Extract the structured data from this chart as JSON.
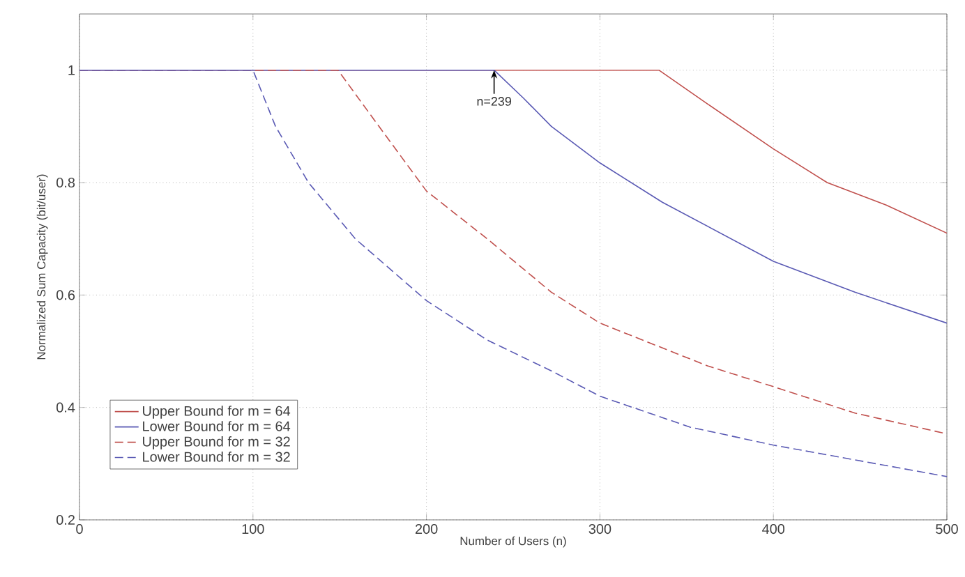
{
  "chart_data": {
    "type": "line",
    "xlabel": "Number of Users (n)",
    "ylabel": "Normalized Sum Capacity (bit/user)",
    "xlim": [
      0,
      500
    ],
    "ylim": [
      0.2,
      1.1
    ],
    "xticks": [
      0,
      100,
      200,
      300,
      400,
      500
    ],
    "yticks": [
      0.2,
      0.4,
      0.6,
      0.8,
      1
    ],
    "grid": true,
    "legend": "bottom left",
    "annotations": [
      {
        "text": "n=239",
        "x": 239,
        "y": 1
      }
    ],
    "series": [
      {
        "name": "Upper Bound for m = 64",
        "color": "#c0504d",
        "line_style": "solid",
        "x": [
          0,
          334,
          362,
          400,
          431,
          465,
          500
        ],
        "values": [
          1,
          1,
          0.94,
          0.86,
          0.8,
          0.76,
          0.71
        ]
      },
      {
        "name": "Lower Bound for m = 64",
        "color": "#5a5ab4",
        "line_style": "solid",
        "x": [
          0,
          239,
          256,
          272,
          300,
          336,
          400,
          447,
          500
        ],
        "values": [
          1,
          1,
          0.95,
          0.9,
          0.835,
          0.765,
          0.66,
          0.605,
          0.55
        ]
      },
      {
        "name": "Upper Bound for m = 32",
        "color": "#c0504d",
        "line_style": "dashed",
        "x": [
          0,
          149,
          175,
          200,
          235,
          272,
          300,
          362,
          400,
          447,
          500
        ],
        "values": [
          1,
          1,
          0.89,
          0.785,
          0.7,
          0.605,
          0.55,
          0.474,
          0.437,
          0.39,
          0.353
        ]
      },
      {
        "name": "Lower Bound for m = 32",
        "color": "#5a5ab4",
        "line_style": "dashed",
        "x": [
          0,
          100,
          113,
          132,
          159,
          200,
          235,
          272,
          300,
          352,
          400,
          500
        ],
        "values": [
          1,
          1,
          0.9,
          0.8,
          0.7,
          0.59,
          0.52,
          0.465,
          0.42,
          0.365,
          0.333,
          0.277
        ]
      }
    ]
  }
}
